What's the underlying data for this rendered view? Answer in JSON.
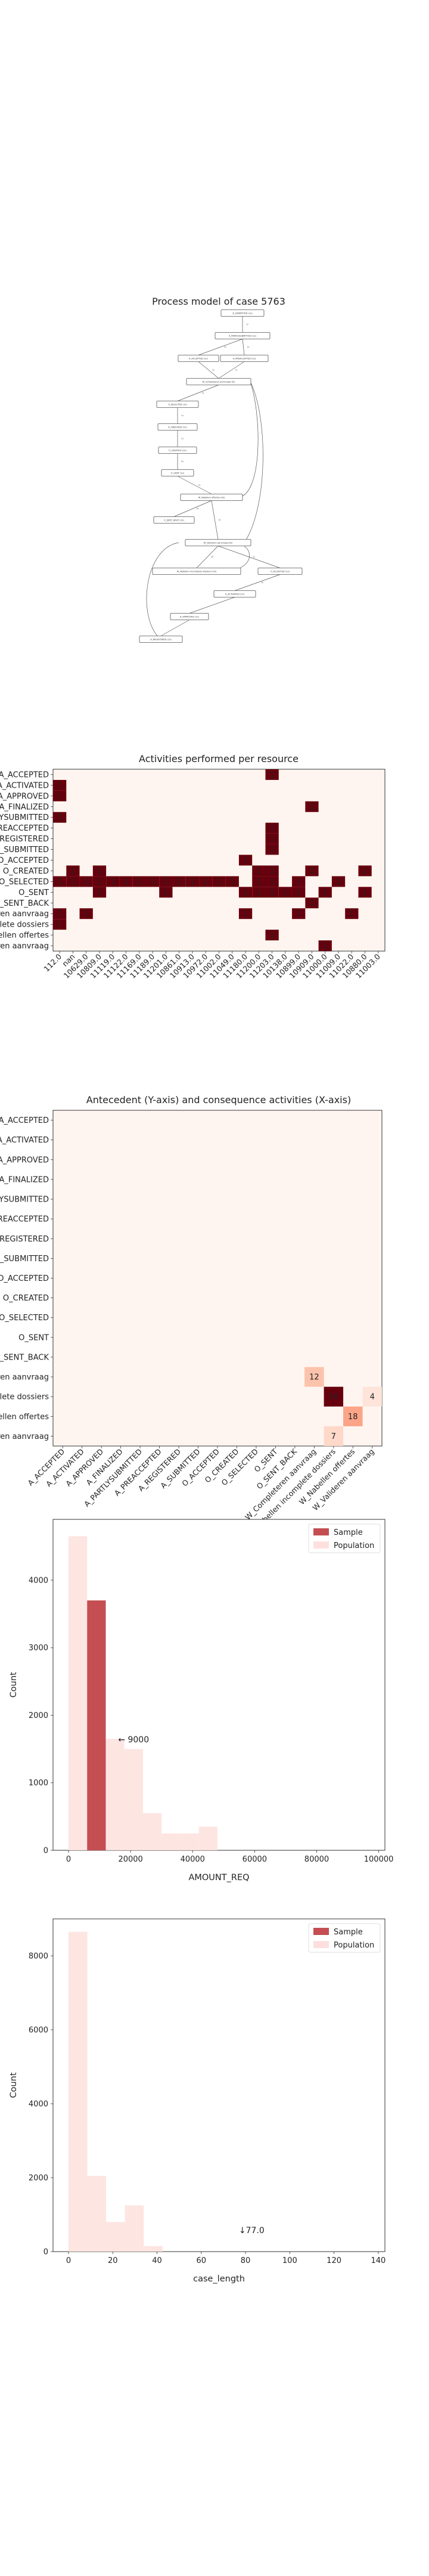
{
  "process_model": {
    "title": "Process model of case 5763",
    "nodes": [
      {
        "label": "A_SUBMITTED (1x)"
      },
      {
        "label": "A_PARTLYSUBMITTED (1x)"
      },
      {
        "label": "A_ACCEPTED (1x)"
      },
      {
        "label": "A_PREACCEPTED (1x)"
      },
      {
        "label": "W_Completeren aanvraag (4x)"
      },
      {
        "label": "O_SELECTED (1x)"
      },
      {
        "label": "A_FINALIZED (1x)"
      },
      {
        "label": "O_CREATED (1x)"
      },
      {
        "label": "O_SENT (1x)"
      },
      {
        "label": "W_Nabellen offertes (4x)"
      },
      {
        "label": "O_SENT_BACK (1x)"
      },
      {
        "label": "W_Valideren aanvraag (4x)"
      },
      {
        "label": "W_Nabellen incomplete dossiers (4x)"
      },
      {
        "label": "O_ACCEPTED (1x)"
      },
      {
        "label": "A_ACTIVATED (1x)"
      },
      {
        "label": "A_APPROVED (1x)"
      },
      {
        "label": "A_REGISTERED (1x)"
      }
    ],
    "edge_labels": [
      "1x",
      "1x",
      "3x",
      "2x",
      "1x",
      "1x",
      "1x",
      "1x",
      "3x",
      "1x",
      "2x",
      "1x",
      "3x",
      "1x",
      "1x"
    ]
  },
  "chart_data": [
    {
      "type": "heatmap",
      "title": "Activities performed per resource",
      "rows": [
        "A_ACCEPTED",
        "A_ACTIVATED",
        "A_APPROVED",
        "A_FINALIZED",
        "A_PARTLYSUBMITTED",
        "A_PREACCEPTED",
        "A_REGISTERED",
        "A_SUBMITTED",
        "O_ACCEPTED",
        "O_CREATED",
        "O_SELECTED",
        "O_SENT",
        "O_SENT_BACK",
        "W_Completeren aanvraag",
        "W_Nabellen incomplete dossiers",
        "W_Nabellen offertes",
        "W_Valideren aanvraag"
      ],
      "columns": [
        "112.0",
        "nan",
        "10629.0",
        "10809.0",
        "11119.0",
        "11122.0",
        "11169.0",
        "11189.0",
        "11201.0",
        "10861.0",
        "10913.0",
        "10972.0",
        "11002.0",
        "11049.0",
        "11180.0",
        "11200.0",
        "11203.0",
        "10138.0",
        "10899.0",
        "10909.0",
        "11000.0",
        "11009.0",
        "11022.0",
        "10880.0",
        "11003.0"
      ],
      "cells": [
        {
          "r": 0,
          "c": 16,
          "v": 1
        },
        {
          "r": 1,
          "c": 0,
          "v": 1
        },
        {
          "r": 2,
          "c": 0,
          "v": 1
        },
        {
          "r": 3,
          "c": 19,
          "v": 1
        },
        {
          "r": 4,
          "c": 0,
          "v": 1
        },
        {
          "r": 5,
          "c": 16,
          "v": 1
        },
        {
          "r": 6,
          "c": 16,
          "v": 1
        },
        {
          "r": 7,
          "c": 16,
          "v": 1
        },
        {
          "r": 8,
          "c": 14,
          "v": 1
        },
        {
          "r": 9,
          "c": 1,
          "v": 1
        },
        {
          "r": 9,
          "c": 3,
          "v": 1
        },
        {
          "r": 9,
          "c": 15,
          "v": 1
        },
        {
          "r": 9,
          "c": 16,
          "v": 1
        },
        {
          "r": 9,
          "c": 19,
          "v": 1
        },
        {
          "r": 9,
          "c": 23,
          "v": 1
        },
        {
          "r": 10,
          "c": 0,
          "v": 1
        },
        {
          "r": 10,
          "c": 1,
          "v": 1
        },
        {
          "r": 10,
          "c": 2,
          "v": 1
        },
        {
          "r": 10,
          "c": 3,
          "v": 1
        },
        {
          "r": 10,
          "c": 4,
          "v": 1
        },
        {
          "r": 10,
          "c": 5,
          "v": 1
        },
        {
          "r": 10,
          "c": 6,
          "v": 1
        },
        {
          "r": 10,
          "c": 7,
          "v": 1
        },
        {
          "r": 10,
          "c": 8,
          "v": 1
        },
        {
          "r": 10,
          "c": 9,
          "v": 1
        },
        {
          "r": 10,
          "c": 10,
          "v": 1
        },
        {
          "r": 10,
          "c": 11,
          "v": 1
        },
        {
          "r": 10,
          "c": 12,
          "v": 1
        },
        {
          "r": 10,
          "c": 13,
          "v": 1
        },
        {
          "r": 10,
          "c": 15,
          "v": 1
        },
        {
          "r": 10,
          "c": 16,
          "v": 1
        },
        {
          "r": 10,
          "c": 18,
          "v": 1
        },
        {
          "r": 10,
          "c": 21,
          "v": 1
        },
        {
          "r": 11,
          "c": 3,
          "v": 1
        },
        {
          "r": 11,
          "c": 8,
          "v": 1
        },
        {
          "r": 11,
          "c": 14,
          "v": 1
        },
        {
          "r": 11,
          "c": 15,
          "v": 1
        },
        {
          "r": 11,
          "c": 16,
          "v": 1
        },
        {
          "r": 11,
          "c": 17,
          "v": 1
        },
        {
          "r": 11,
          "c": 18,
          "v": 1
        },
        {
          "r": 11,
          "c": 20,
          "v": 1
        },
        {
          "r": 11,
          "c": 23,
          "v": 1
        },
        {
          "r": 12,
          "c": 19,
          "v": 1
        },
        {
          "r": 13,
          "c": 0,
          "v": 1
        },
        {
          "r": 13,
          "c": 2,
          "v": 1
        },
        {
          "r": 13,
          "c": 14,
          "v": 1
        },
        {
          "r": 13,
          "c": 18,
          "v": 1
        },
        {
          "r": 13,
          "c": 22,
          "v": 1
        },
        {
          "r": 14,
          "c": 0,
          "v": 1
        },
        {
          "r": 15,
          "c": 16,
          "v": 1
        },
        {
          "r": 16,
          "c": 20,
          "v": 1
        }
      ]
    },
    {
      "type": "heatmap",
      "title": "Antecedent (Y-axis) and consequence activities (X-axis)",
      "rows": [
        "A_ACCEPTED",
        "A_ACTIVATED",
        "A_APPROVED",
        "A_FINALIZED",
        "A_PARTLYSUBMITTED",
        "A_PREACCEPTED",
        "A_REGISTERED",
        "A_SUBMITTED",
        "O_ACCEPTED",
        "O_CREATED",
        "O_SELECTED",
        "O_SENT",
        "O_SENT_BACK",
        "W_Completeren aanvraag",
        "W_Nabellen incomplete dossiers",
        "W_Nabellen offertes",
        "W_Valideren aanvraag"
      ],
      "columns": [
        "A_ACCEPTED",
        "A_ACTIVATED",
        "A_APPROVED",
        "A_FINALIZED",
        "A_PARTLYSUBMITTED",
        "A_PREACCEPTED",
        "A_REGISTERED",
        "A_SUBMITTED",
        "O_ACCEPTED",
        "O_CREATED",
        "O_SELECTED",
        "O_SENT",
        "O_SENT_BACK",
        "W_Completeren aanvraag",
        "W_Nabellen incomplete dossiers",
        "W_Nabellen offertes",
        "W_Valideren aanvraag"
      ],
      "cells": [
        {
          "r": 13,
          "c": 13,
          "v": 12
        },
        {
          "r": 14,
          "c": 14,
          "v": 56
        },
        {
          "r": 14,
          "c": 16,
          "v": 4
        },
        {
          "r": 15,
          "c": 15,
          "v": 18
        },
        {
          "r": 16,
          "c": 14,
          "v": 7
        }
      ]
    },
    {
      "type": "bar",
      "subtype": "histogram",
      "xlabel": "AMOUNT_REQ",
      "ylabel": "Count",
      "xlim": [
        -5000,
        102000
      ],
      "ylim": [
        0,
        4900
      ],
      "xticks": [
        "0",
        "20000",
        "40000",
        "60000",
        "80000",
        "100000"
      ],
      "yticks": [
        "0",
        "1000",
        "2000",
        "3000",
        "4000"
      ],
      "legend": [
        "Sample",
        "Population"
      ],
      "legend_position": "top-right",
      "bin_width": 6000,
      "population": [
        {
          "x0": 0,
          "v": 4650
        },
        {
          "x0": 6000,
          "v": 3650
        },
        {
          "x0": 12000,
          "v": 1650
        },
        {
          "x0": 18000,
          "v": 1500
        },
        {
          "x0": 24000,
          "v": 550
        },
        {
          "x0": 30000,
          "v": 250
        },
        {
          "x0": 36000,
          "v": 250
        },
        {
          "x0": 42000,
          "v": 350
        }
      ],
      "sample": [
        {
          "x0": 6000,
          "v": 3700
        }
      ],
      "annotation": "← 9000",
      "annotation_at": [
        16000,
        1600
      ]
    },
    {
      "type": "bar",
      "subtype": "histogram",
      "xlabel": "case_length",
      "ylabel": "Count",
      "xlim": [
        -7,
        143
      ],
      "ylim": [
        0,
        9000
      ],
      "xticks": [
        "0",
        "20",
        "40",
        "60",
        "80",
        "100",
        "120",
        "140"
      ],
      "yticks": [
        "0",
        "2000",
        "4000",
        "6000",
        "8000"
      ],
      "legend": [
        "Sample",
        "Population"
      ],
      "legend_position": "top-right",
      "bin_width": 8.5,
      "population": [
        {
          "x0": 0,
          "v": 8650
        },
        {
          "x0": 8.5,
          "v": 2050
        },
        {
          "x0": 17,
          "v": 800
        },
        {
          "x0": 25.5,
          "v": 1250
        },
        {
          "x0": 34,
          "v": 150
        }
      ],
      "sample": [],
      "annotation": "↓77.0",
      "annotation_at": [
        77,
        500
      ]
    }
  ]
}
